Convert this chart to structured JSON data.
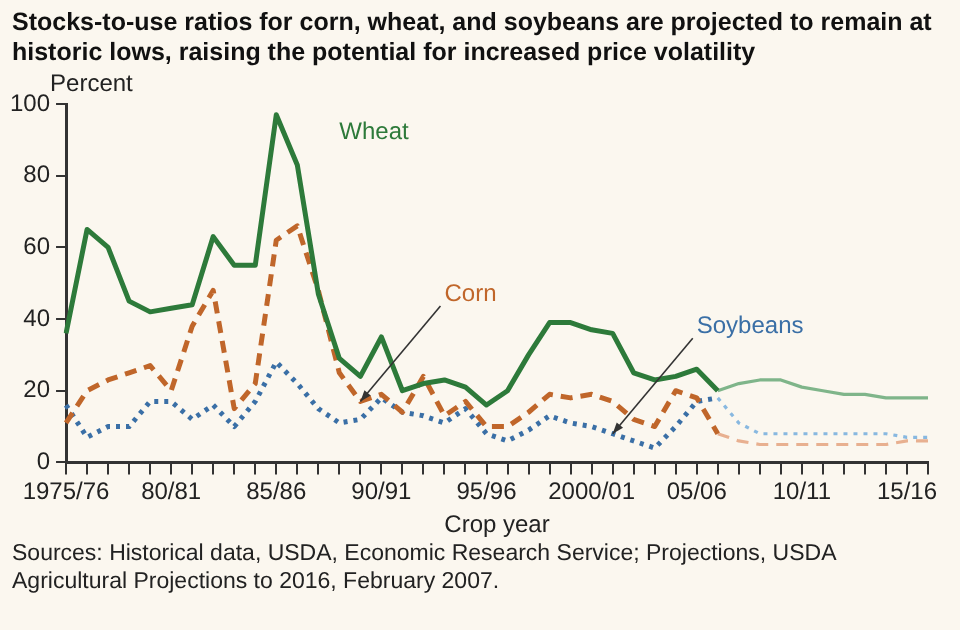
{
  "chart_data": {
    "type": "line",
    "title": "Stocks-to-use ratios for corn, wheat, and soybeans are projected to remain at historic lows, raising the potential for increased price volatility",
    "xlabel": "Crop year",
    "ylabel": "Percent",
    "categories": [
      "1975/76",
      null,
      null,
      null,
      null,
      "80/81",
      null,
      null,
      null,
      null,
      "85/86",
      null,
      null,
      null,
      null,
      "90/91",
      null,
      null,
      null,
      null,
      "95/96",
      null,
      null,
      null,
      null,
      "2000/01",
      null,
      null,
      null,
      null,
      "05/06",
      null,
      null,
      null,
      null,
      "10/11",
      null,
      null,
      null,
      null,
      "15/16",
      null
    ],
    "series": [
      {
        "name": "Wheat",
        "color": "#2d7a3a",
        "line_style": "solid",
        "values": [
          36,
          65,
          60,
          45,
          42,
          43,
          44,
          63,
          55,
          55,
          97,
          83,
          47,
          29,
          24,
          35,
          20,
          22,
          23,
          21,
          16,
          20,
          30,
          39,
          39,
          37,
          36,
          25,
          23,
          24,
          26,
          20,
          null,
          null,
          null,
          null,
          null,
          null,
          null,
          null,
          null,
          null
        ]
      },
      {
        "name": "Corn",
        "color": "#c0662a",
        "line_style": "dashed",
        "values": [
          11,
          20,
          23,
          25,
          27,
          20,
          38,
          48,
          15,
          22,
          62,
          66,
          48,
          25,
          17,
          19,
          14,
          24,
          13,
          17,
          10,
          10,
          14,
          19,
          18,
          19,
          17,
          12,
          10,
          20,
          18,
          8,
          null,
          null,
          null,
          null,
          null,
          null,
          null,
          null,
          null,
          null
        ]
      },
      {
        "name": "Soybeans",
        "color": "#3a6fa6",
        "line_style": "dotted",
        "values": [
          16,
          7,
          10,
          10,
          17,
          17,
          12,
          16,
          10,
          17,
          28,
          22,
          15,
          11,
          12,
          18,
          14,
          13,
          11,
          15,
          8,
          6,
          9,
          13,
          11,
          10,
          8,
          6,
          4,
          10,
          17,
          18,
          null,
          null,
          null,
          null,
          null,
          null,
          null,
          null,
          null,
          null
        ]
      },
      {
        "color": "#7fb58a",
        "line_style": "solid",
        "values": [
          null,
          null,
          null,
          null,
          null,
          null,
          null,
          null,
          null,
          null,
          null,
          null,
          null,
          null,
          null,
          null,
          null,
          null,
          null,
          null,
          null,
          null,
          null,
          null,
          null,
          null,
          null,
          null,
          null,
          null,
          null,
          20,
          22,
          23,
          23,
          21,
          20,
          19,
          19,
          18,
          18,
          18
        ]
      },
      {
        "color": "#e8b090",
        "line_style": "dashed",
        "values": [
          null,
          null,
          null,
          null,
          null,
          null,
          null,
          null,
          null,
          null,
          null,
          null,
          null,
          null,
          null,
          null,
          null,
          null,
          null,
          null,
          null,
          null,
          null,
          null,
          null,
          null,
          null,
          null,
          null,
          null,
          null,
          8,
          6,
          5,
          5,
          5,
          5,
          5,
          5,
          5,
          6,
          6
        ]
      },
      {
        "color": "#88b8e0",
        "line_style": "dotted",
        "values": [
          null,
          null,
          null,
          null,
          null,
          null,
          null,
          null,
          null,
          null,
          null,
          null,
          null,
          null,
          null,
          null,
          null,
          null,
          null,
          null,
          null,
          null,
          null,
          null,
          null,
          null,
          null,
          null,
          null,
          null,
          null,
          18,
          11,
          8,
          8,
          8,
          8,
          8,
          8,
          8,
          7,
          7
        ]
      }
    ],
    "ylim": [
      0,
      100
    ],
    "yticks": [
      0,
      20,
      40,
      60,
      80,
      100
    ],
    "grid": false,
    "legend": false,
    "marker": "none",
    "annotations": [
      "Sources: Historical data, USDA, Economic Research Service; Projections, USDA Agricultural Projections to 2016, February 2007."
    ]
  }
}
